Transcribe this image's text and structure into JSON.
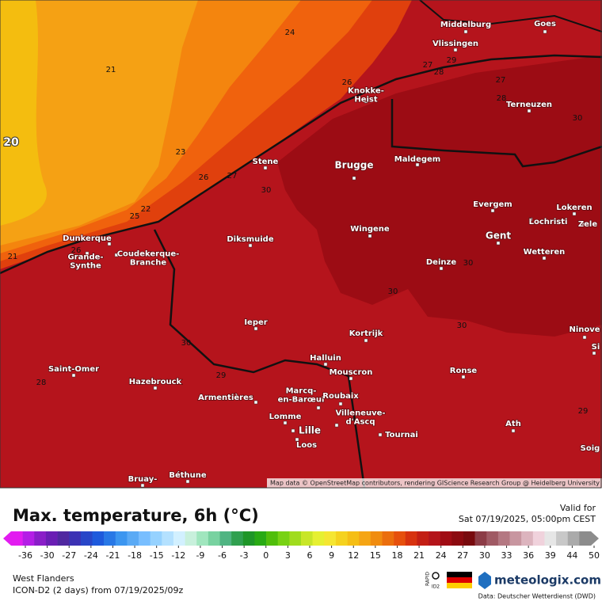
{
  "map": {
    "places": [
      [
        "Middelburg"
      ],
      [
        "Goes"
      ],
      [
        "Vlissingen"
      ],
      [
        "Knokke-",
        "Heist"
      ],
      [
        "Terneuzen"
      ],
      [
        "Stene"
      ],
      [
        "Brugge"
      ],
      [
        "Maldegem"
      ],
      [
        "Evergem"
      ],
      [
        "Lokeren"
      ],
      [
        "Lochristi"
      ],
      [
        "Zele"
      ],
      [
        "Wingene"
      ],
      [
        "Gent"
      ],
      [
        "Diksmuide"
      ],
      [
        "Dunkerque"
      ],
      [
        "Grande-",
        "Synthe"
      ],
      [
        "Coudekerque-",
        "Branche"
      ],
      [
        "Deinze"
      ],
      [
        "Wetteren"
      ],
      [
        "Ieper"
      ],
      [
        "Kortrijk"
      ],
      [
        "Ninove"
      ],
      [
        "Si"
      ],
      [
        "Saint-Omer"
      ],
      [
        "Halluin"
      ],
      [
        "Mouscron"
      ],
      [
        "Ronse"
      ],
      [
        "Hazebrouck"
      ],
      [
        "Armentières"
      ],
      [
        "Marcq-",
        "en-Barœul"
      ],
      [
        "Roubaix"
      ],
      [
        "Lomme"
      ],
      [
        "Villeneuve-",
        "d'Ascq"
      ],
      [
        "Lille"
      ],
      [
        "Tournai"
      ],
      [
        "Ath"
      ],
      [
        "Loos"
      ],
      [
        "Soig"
      ],
      [
        "Béthune"
      ],
      [
        "Bruay-"
      ]
    ],
    "contour_labels": [
      24,
      21,
      20,
      23,
      26,
      27,
      28,
      29,
      27,
      28,
      30,
      26,
      27,
      30,
      22,
      25,
      21,
      26,
      30,
      30,
      30,
      30,
      29,
      28,
      29
    ],
    "attribution": "Map data © OpenStreetMap contributors, rendering GIScience Research Group @ Heidelberg University"
  },
  "footer": {
    "title": "Max. temperature, 6h (°C)",
    "valid_label": "Valid for",
    "valid_time": "Sat 07/19/2025, 05:00pm CEST",
    "region": "West Flanders",
    "model_run": "ICON-D2 (2 days) from 07/19/2025/09z",
    "rapid": "RAPID",
    "model_code": "ID2",
    "brand": "meteologix.com",
    "source": "Data: Deutscher Wetterdienst (DWD)"
  },
  "legend": {
    "ticks": [
      -36,
      -30,
      -27,
      -24,
      -21,
      -18,
      -15,
      -12,
      -9,
      -6,
      -3,
      0,
      3,
      6,
      9,
      12,
      15,
      18,
      21,
      24,
      27,
      30,
      33,
      36,
      39,
      44,
      50
    ],
    "colors": [
      "#e21cf0",
      "#b41ee6",
      "#8a1ec8",
      "#6a1eb4",
      "#5028a0",
      "#3c32b4",
      "#2846c8",
      "#1e5adc",
      "#2878e6",
      "#3c96f0",
      "#5aaaf5",
      "#78beff",
      "#96d2ff",
      "#b4e1ff",
      "#d2f0ff",
      "#c8f0dc",
      "#a0e6be",
      "#78d2a0",
      "#50b482",
      "#30a050",
      "#1e9628",
      "#28aa14",
      "#50be0a",
      "#78d214",
      "#a0dc1e",
      "#c8e628",
      "#e6f032",
      "#f5e632",
      "#f5d21e",
      "#f5be14",
      "#f5a514",
      "#f08c0f",
      "#eb6e0d",
      "#e6500d",
      "#d7320f",
      "#c31e14",
      "#b4141a",
      "#a00c14",
      "#8c0a10",
      "#780a0e",
      "#8c3c46",
      "#a05a64",
      "#b47882",
      "#c896a0",
      "#dcb4be",
      "#f0d2dc",
      "#e6e6e6",
      "#c8c8c8",
      "#aaaaaa",
      "#8c8c8c"
    ]
  }
}
